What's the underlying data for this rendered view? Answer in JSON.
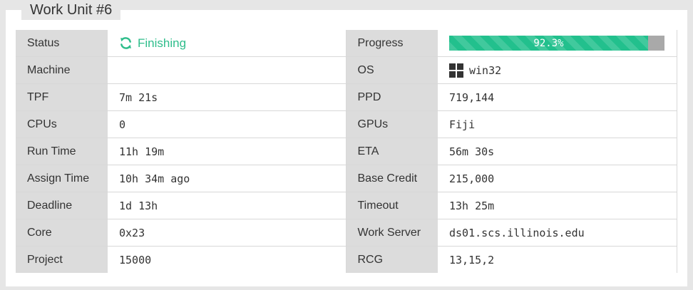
{
  "title": "Work Unit #6",
  "rows": [
    {
      "l1": "Status",
      "v1": "Finishing",
      "l2": "Progress",
      "v2": "92.3%"
    },
    {
      "l1": "Machine",
      "v1": "",
      "l2": "OS",
      "v2": "win32"
    },
    {
      "l1": "TPF",
      "v1": "7m 21s",
      "l2": "PPD",
      "v2": "719,144"
    },
    {
      "l1": "CPUs",
      "v1": "0",
      "l2": "GPUs",
      "v2": "Fiji"
    },
    {
      "l1": "Run Time",
      "v1": "11h 19m",
      "l2": "ETA",
      "v2": "56m 30s"
    },
    {
      "l1": "Assign Time",
      "v1": "10h 34m ago",
      "l2": "Base Credit",
      "v2": "215,000"
    },
    {
      "l1": "Deadline",
      "v1": "1d 13h",
      "l2": "Timeout",
      "v2": "13h 25m"
    },
    {
      "l1": "Core",
      "v1": "0x23",
      "l2": "Work Server",
      "v2": "ds01.scs.illinois.edu"
    },
    {
      "l1": "Project",
      "v1": "15000",
      "l2": "RCG",
      "v2": "13,15,2"
    }
  ],
  "progress_fraction": 0.923,
  "icons": {
    "status": "refresh-icon",
    "os": "windows-icon"
  },
  "colors": {
    "status": "#2ebd8b",
    "progress": "#22c08d",
    "progress_track": "#a9a9a9"
  }
}
